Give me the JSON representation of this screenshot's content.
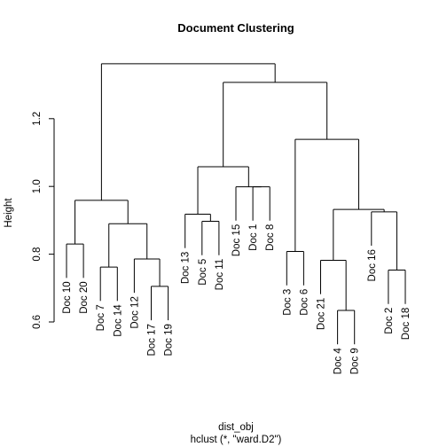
{
  "chart_data": {
    "type": "dendrogram",
    "title": "Document Clustering",
    "xlabel": "dist_obj",
    "sublabel": "hclust (*, \"ward.D2\")",
    "ylabel": "Height",
    "yticks": [
      "0.6",
      "0.8",
      "1.0",
      "1.2"
    ],
    "ytick_values": [
      0.6,
      0.8,
      1.0,
      1.2
    ],
    "ylim": [
      0.55,
      1.4
    ],
    "hang": 0.1,
    "leaves": [
      "Doc 10",
      "Doc 20",
      "Doc 7",
      "Doc 14",
      "Doc 12",
      "Doc 17",
      "Doc 19",
      "Doc 13",
      "Doc 5",
      "Doc 11",
      "Doc 15",
      "Doc 1",
      "Doc 8",
      "Doc 3",
      "Doc 6",
      "Doc 21",
      "Doc 4",
      "Doc 9",
      "Doc 16",
      "Doc 2",
      "Doc 18"
    ],
    "merges": [
      {
        "left": "Doc 4",
        "right": "Doc 9",
        "height": 0.634
      },
      {
        "left": "Doc 17",
        "right": "Doc 19",
        "height": 0.705
      },
      {
        "left": "Doc 2",
        "right": "Doc 18",
        "height": 0.753
      },
      {
        "left": "Doc 7",
        "right": "Doc 14",
        "height": 0.762
      },
      {
        "left": "Doc 21",
        "right": "Doc 4 + Doc 9",
        "height": 0.782
      },
      {
        "left": "Doc 12",
        "right": "Doc 17 + Doc 19",
        "height": 0.786
      },
      {
        "left": "Doc 3",
        "right": "Doc 6",
        "height": 0.808
      },
      {
        "left": "Doc 10",
        "right": "Doc 20",
        "height": 0.83
      },
      {
        "left": "Doc 7 + Doc 14",
        "right": "Doc 12 + Doc 17 + Doc 19",
        "height": 0.89
      },
      {
        "left": "Doc 5",
        "right": "Doc 11",
        "height": 0.897
      },
      {
        "left": "Doc 13",
        "right": "Doc 5 + Doc 11",
        "height": 0.918
      },
      {
        "left": "Doc 16",
        "right": "Doc 2 + Doc 18",
        "height": 0.925
      },
      {
        "left": "Doc 21 + Doc 4 + Doc 9",
        "right": "Doc 16 + Doc 2 + Doc 18",
        "height": 0.932
      },
      {
        "left": "Doc 10 + Doc 20",
        "right": "Doc 7 + Doc 14 + Doc 12 + Doc 17 + Doc 19",
        "height": 0.959
      },
      {
        "left": "Doc 1",
        "right": "Doc 8",
        "height": 0.999
      },
      {
        "left": "Doc 15",
        "right": "Doc 1 + Doc 8",
        "height": 0.999
      },
      {
        "left": "Doc 13 + Doc 5 + Doc 11",
        "right": "Doc 15 + Doc 1 + Doc 8",
        "height": 1.058
      },
      {
        "left": "Doc 3 + Doc 6",
        "right": "Doc 21 + Doc 4 + Doc 9 + Doc 16 + Doc 2 + Doc 18",
        "height": 1.139
      },
      {
        "left": "Doc 13 .. Doc 8",
        "right": "Doc 3 .. Doc 18",
        "height": 1.307
      },
      {
        "left": "Doc 10 .. Doc 19",
        "right": "Doc 13 .. Doc 18",
        "height": 1.362
      }
    ]
  }
}
